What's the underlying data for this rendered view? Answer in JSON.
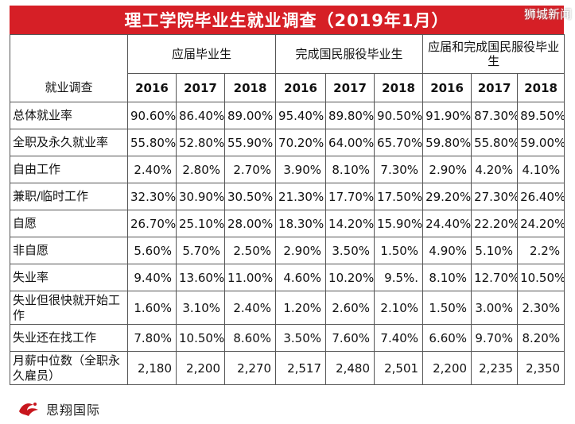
{
  "title": "理工学院毕业生就业调查（2019年1月）",
  "watermark": "狮城新闻",
  "corner_label": "就业调查",
  "groups": [
    "应届毕业生",
    "完成国民服役毕业生",
    "应届和完成国民服役毕业生"
  ],
  "years": [
    "2016",
    "2017",
    "2018",
    "2016",
    "2017",
    "2018",
    "2016",
    "2017",
    "2018"
  ],
  "rows": [
    {
      "label": "总体就业率",
      "values": [
        "90.60%",
        "86.40%",
        "89.00%",
        "95.40%",
        "89.80%",
        "90.50%",
        "91.90%",
        "87.30%",
        "89.50%"
      ]
    },
    {
      "label": "全职及永久就业率",
      "values": [
        "55.80%",
        "52.80%",
        "55.90%",
        "70.20%",
        "64.00%",
        "65.70%",
        "59.80%",
        "55.80%",
        "59.00%"
      ]
    },
    {
      "label": "自由工作",
      "values": [
        "2.40%",
        "2.80%",
        "2.70%",
        "3.90%",
        "8.10%",
        "7.30%",
        "2.90%",
        "4.20%",
        "4.10%"
      ]
    },
    {
      "label": "兼职/临时工作",
      "values": [
        "32.30%",
        "30.90%",
        "30.50%",
        "21.30%",
        "17.70%",
        "17.50%",
        "29.20%",
        "27.30%",
        "26.40%"
      ]
    },
    {
      "label": "自愿",
      "values": [
        "26.70%",
        "25.10%",
        "28.00%",
        "18.30%",
        "14.20%",
        "15.90%",
        "24.40%",
        "22.20%",
        "24.20%"
      ]
    },
    {
      "label": "非自愿",
      "values": [
        "5.60%",
        "5.70%",
        "2.50%",
        "2.90%",
        "3.50%",
        "1.50%",
        "4.90%",
        "5.10%",
        "2.2%"
      ]
    },
    {
      "label": "失业率",
      "values": [
        "9.40%",
        "13.60%",
        "11.00%",
        "4.60%",
        "10.20%",
        "9.5%.",
        "8.10%",
        "12.70%",
        "10.50%"
      ]
    },
    {
      "label": "失业但很快就开始工作",
      "values": [
        "1.60%",
        "3.10%",
        "2.40%",
        "1.20%",
        "2.60%",
        "2.10%",
        "1.50%",
        "3.00%",
        "2.30%"
      ]
    },
    {
      "label": "失业还在找工作",
      "values": [
        "7.80%",
        "10.50%",
        "8.60%",
        "3.50%",
        "7.60%",
        "7.40%",
        "6.60%",
        "9.70%",
        "8.20%"
      ]
    },
    {
      "label": "月薪中位数（全职永久雇员）",
      "values": [
        "2,180",
        "2,200",
        "2,270",
        "2,517",
        "2,480",
        "2,501",
        "2,200",
        "2,235",
        "2,350"
      ]
    }
  ],
  "footer": {
    "logo_text": "思翔国际",
    "logo_icon": "sixiang-logo-icon"
  },
  "colors": {
    "title_bg": "#d61f26",
    "title_fg": "#ffffff",
    "border": "#555555"
  }
}
